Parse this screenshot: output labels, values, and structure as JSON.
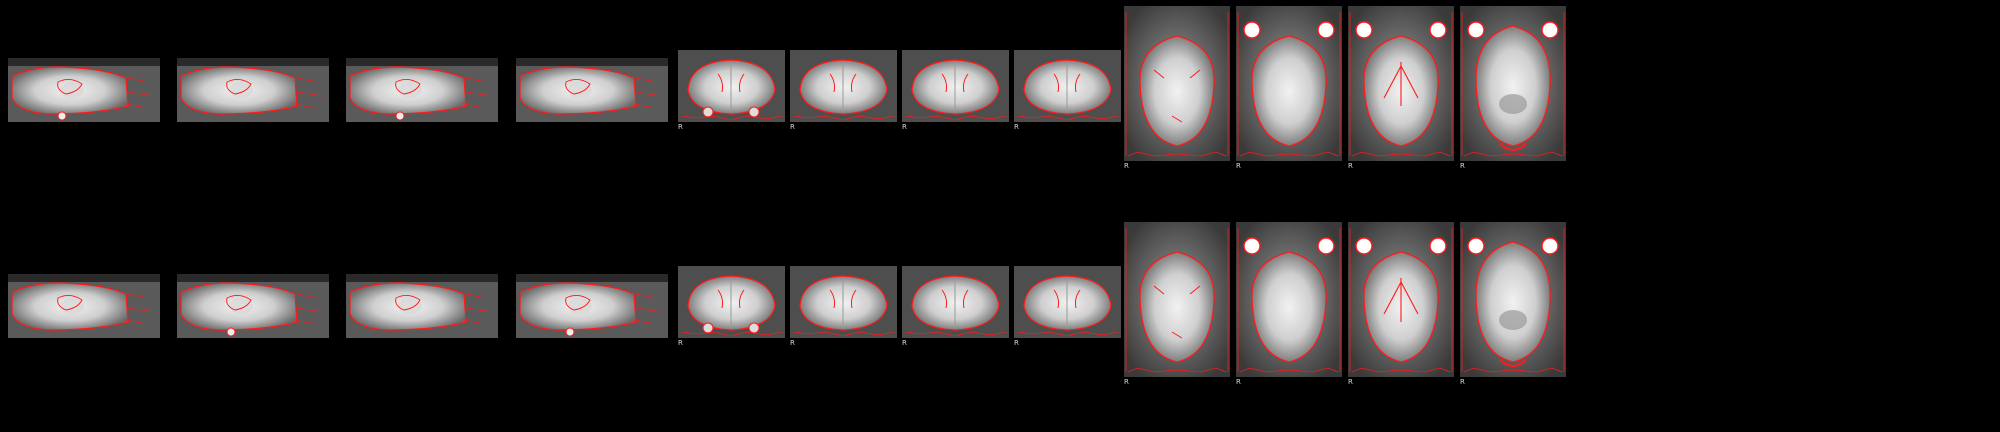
{
  "figure": {
    "description_colors": {
      "background": "#000000",
      "contour": "#ff1a1a",
      "label_text": "#d8d8d8"
    },
    "rows": [
      {
        "id": "top",
        "panels": [
          {
            "view": "sagittal",
            "label": ""
          },
          {
            "view": "sagittal",
            "label": ""
          },
          {
            "view": "sagittal",
            "label": ""
          },
          {
            "view": "sagittal",
            "label": ""
          },
          {
            "view": "coronal",
            "label": "R"
          },
          {
            "view": "coronal",
            "label": "R"
          },
          {
            "view": "coronal",
            "label": "R"
          },
          {
            "view": "coronal",
            "label": "R"
          },
          {
            "view": "axial",
            "label": "R"
          },
          {
            "view": "axial",
            "label": "R"
          },
          {
            "view": "axial",
            "label": "R"
          },
          {
            "view": "axial",
            "label": "R"
          }
        ]
      },
      {
        "id": "bottom",
        "panels": [
          {
            "view": "sagittal",
            "label": ""
          },
          {
            "view": "sagittal",
            "label": ""
          },
          {
            "view": "sagittal",
            "label": ""
          },
          {
            "view": "sagittal",
            "label": ""
          },
          {
            "view": "coronal",
            "label": "R"
          },
          {
            "view": "coronal",
            "label": "R"
          },
          {
            "view": "coronal",
            "label": "R"
          },
          {
            "view": "coronal",
            "label": "R"
          },
          {
            "view": "axial",
            "label": "R"
          },
          {
            "view": "axial",
            "label": "R"
          },
          {
            "view": "axial",
            "label": "R"
          },
          {
            "view": "axial",
            "label": "R"
          }
        ]
      }
    ]
  }
}
